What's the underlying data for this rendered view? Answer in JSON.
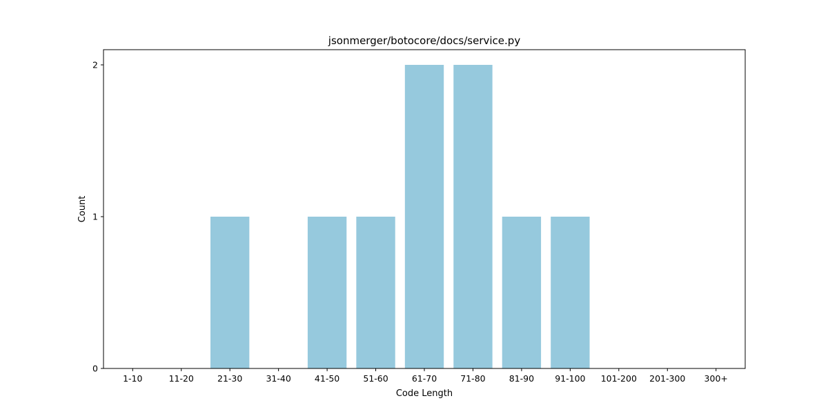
{
  "chart_data": {
    "type": "bar",
    "title": "jsonmerger/botocore/docs/service.py",
    "xlabel": "Code Length",
    "ylabel": "Count",
    "categories": [
      "1-10",
      "11-20",
      "21-30",
      "31-40",
      "41-50",
      "51-60",
      "61-70",
      "71-80",
      "81-90",
      "91-100",
      "101-200",
      "201-300",
      "300+"
    ],
    "values": [
      0,
      0,
      1,
      0,
      1,
      1,
      2,
      2,
      1,
      1,
      0,
      0,
      0
    ],
    "ylim": [
      0,
      2.1
    ],
    "yticks": [
      0,
      1,
      2
    ],
    "grid": false,
    "legend": "none",
    "bar_color": "#96c9dd"
  }
}
